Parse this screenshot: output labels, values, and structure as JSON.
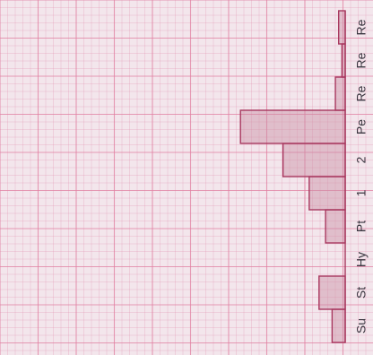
{
  "chart_data": {
    "type": "bar",
    "orientation": "horizontal",
    "title": "",
    "xlabel": "",
    "ylabel": "",
    "categories": [
      "Su",
      "St",
      "Hy",
      "Pt",
      "1",
      "2",
      "Pe",
      "Re",
      "Re",
      "Re"
    ],
    "values": [
      0.4,
      0.8,
      0,
      0.6,
      1.1,
      1.9,
      3.2,
      0.3,
      0.1,
      0.2
    ],
    "xlim": [
      0,
      10
    ],
    "grid": true,
    "colors": {
      "bar_fill": "#c98ea4",
      "bar_stroke": "#a8385f",
      "grid": "#e07ea0",
      "paper": "#f3e6ec"
    }
  }
}
